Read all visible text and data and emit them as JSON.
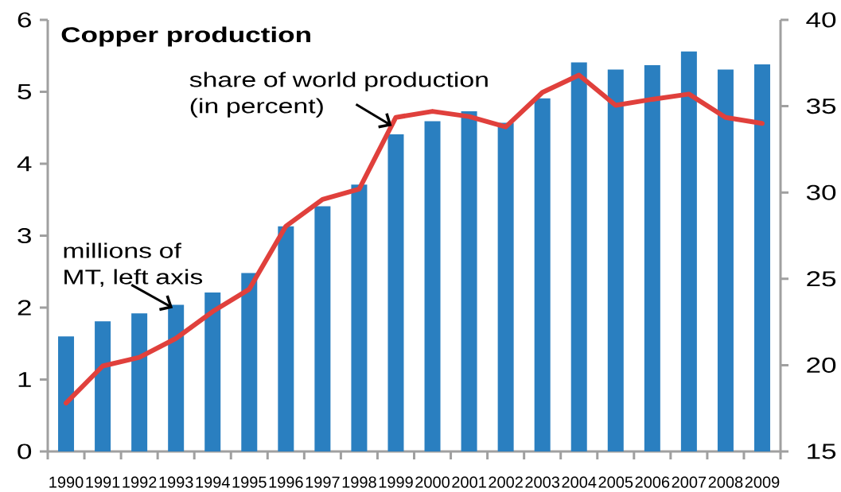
{
  "chart_data": {
    "type": "bar",
    "title": "Copper production",
    "categories": [
      "1990",
      "1991",
      "1992",
      "1993",
      "1994",
      "1995",
      "1996",
      "1997",
      "1998",
      "1999",
      "2000",
      "2001",
      "2002",
      "2003",
      "2004",
      "2005",
      "2006",
      "2007",
      "2008",
      "2009"
    ],
    "series": [
      {
        "color": "#2a7fc0",
        "values": [
          1.6,
          1.81,
          1.92,
          2.04,
          2.21,
          2.48,
          3.13,
          3.41,
          3.71,
          4.41,
          4.59,
          4.73,
          4.57,
          4.91,
          5.41,
          5.31,
          5.37,
          5.56,
          5.31,
          5.38
        ]
      },
      {
        "type": "line",
        "axis": "y2",
        "color": "#e0403c",
        "line_style": "solid",
        "values": [
          17.8,
          19.95,
          20.45,
          21.55,
          23.1,
          24.4,
          28.05,
          29.6,
          30.2,
          34.35,
          34.7,
          34.4,
          33.8,
          35.8,
          36.8,
          35.05,
          35.4,
          35.7,
          34.35,
          34.0
        ]
      }
    ],
    "ylim": [
      0,
      6
    ],
    "yticks": [
      0,
      1,
      2,
      3,
      4,
      5,
      6
    ],
    "y2lim": [
      15,
      40
    ],
    "y2ticks": [
      15,
      20,
      25,
      30,
      35,
      40
    ],
    "annotations": [
      {
        "text": "share of world production (in percent)",
        "x": "1999",
        "y": 4.55
      },
      {
        "text": "millions of MT, left axis",
        "x": "1993",
        "y": 2.04
      }
    ]
  }
}
